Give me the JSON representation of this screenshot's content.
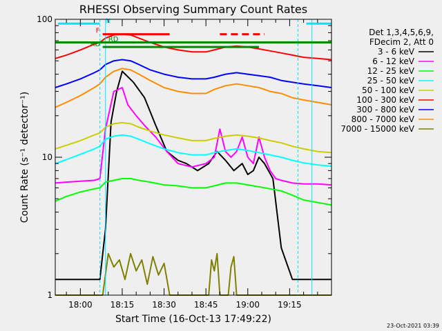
{
  "chart_data": {
    "type": "line",
    "title": "RHESSI Observing Summary Count Rates",
    "xlabel": "Start Time (16-Oct-13 17:49:22)",
    "ylabel": "Count Rate (s⁻¹ detector⁻¹)",
    "y_scale": "log",
    "ylim": [
      1,
      100
    ],
    "xlim_minutes": [
      -9,
      90
    ],
    "x_tick_labels": [
      "18:00",
      "18:15",
      "18:30",
      "18:45",
      "19:00",
      "19:15"
    ],
    "x_tick_minutes": [
      0,
      15,
      30,
      45,
      60,
      75
    ],
    "y_tick_labels": [
      "1",
      "10",
      "100"
    ],
    "y_tick_values": [
      1,
      10,
      100
    ],
    "grid": false,
    "legend_position": "right",
    "legend_header": [
      "Det 1,3,4,5,6,9,",
      "FDecim 2, Att 0"
    ],
    "timestamp": "23-Oct-2021 03:39",
    "flag_labels": {
      "n": "N",
      "f": "F",
      "rd1": "RD",
      "rd2": "RD"
    },
    "colors": {
      "background": "#efefef",
      "axis": "#000000",
      "boundary": "#00e5ff",
      "flag_n": "#00e5ff",
      "flag_f": "#ff0000",
      "flag_rd": "#008800"
    },
    "data_gaps_minutes": [
      [
        7,
        9
      ],
      [
        78,
        83
      ]
    ],
    "series": [
      {
        "name": "3 - 6 keV",
        "color": "#000000",
        "x": [
          -9,
          -5,
          0,
          5,
          7,
          9,
          11,
          13,
          15,
          19,
          23,
          27,
          31,
          35,
          38,
          42,
          46,
          49,
          52,
          55,
          58,
          60,
          62,
          64,
          66,
          69,
          72,
          76,
          80,
          85,
          90
        ],
        "y": [
          1.3,
          1.3,
          1.3,
          1.3,
          1.3,
          3.0,
          18,
          30,
          42,
          35,
          27,
          17,
          11,
          9.5,
          9,
          8,
          9,
          11,
          9.5,
          8,
          9,
          7.5,
          8,
          10,
          9,
          7,
          2.2,
          1.3,
          1.3,
          1.3,
          1.3
        ]
      },
      {
        "name": "6 - 12 keV",
        "color": "#ff00ff",
        "x": [
          -9,
          -5,
          0,
          5,
          7,
          9,
          12,
          15,
          17,
          20,
          23,
          27,
          31,
          35,
          40,
          45,
          48,
          50,
          52,
          54,
          56,
          58,
          60,
          62,
          64,
          66,
          68,
          70,
          72,
          76,
          80,
          85,
          90
        ],
        "y": [
          6.5,
          6.6,
          6.7,
          6.8,
          7,
          16,
          30,
          32,
          24,
          20,
          17,
          14,
          11,
          9,
          8.5,
          9,
          10,
          16,
          11,
          10,
          11,
          14,
          10,
          9,
          14,
          10,
          8,
          7,
          6.8,
          6.5,
          6.4,
          6.4,
          6.3
        ]
      },
      {
        "name": "12 - 25 keV",
        "color": "#00ff00",
        "x": [
          -9,
          -5,
          0,
          5,
          7,
          9,
          12,
          15,
          18,
          21,
          25,
          30,
          35,
          40,
          45,
          48,
          52,
          56,
          60,
          64,
          68,
          72,
          76,
          80,
          85,
          90
        ],
        "y": [
          4.8,
          5.2,
          5.6,
          5.9,
          6,
          6.6,
          6.8,
          7,
          7,
          6.8,
          6.6,
          6.3,
          6.2,
          6,
          6,
          6.2,
          6.5,
          6.5,
          6.3,
          6.1,
          5.9,
          5.7,
          5.3,
          4.9,
          4.7,
          4.5
        ]
      },
      {
        "name": "25 - 50 keV",
        "color": "#00ffff",
        "x": [
          -9,
          -5,
          0,
          5,
          7,
          9,
          12,
          15,
          18,
          21,
          25,
          30,
          35,
          40,
          45,
          48,
          52,
          56,
          60,
          64,
          68,
          72,
          76,
          80,
          85,
          90
        ],
        "y": [
          9,
          9.6,
          10.5,
          11.5,
          12,
          13.5,
          14.2,
          14.5,
          14.2,
          13.5,
          12.5,
          11.5,
          10.8,
          10.4,
          10.4,
          10.8,
          11.2,
          11.5,
          11.2,
          10.8,
          10.4,
          10,
          9.5,
          9.1,
          8.8,
          8.6
        ]
      },
      {
        "name": "50 - 100 keV",
        "color": "#cccc00",
        "x": [
          -9,
          -5,
          0,
          5,
          7,
          9,
          12,
          15,
          18,
          21,
          25,
          30,
          35,
          40,
          45,
          48,
          52,
          56,
          60,
          64,
          68,
          72,
          76,
          80,
          85,
          90
        ],
        "y": [
          11.5,
          12.2,
          13.2,
          14.5,
          15,
          16.5,
          17.5,
          17.8,
          17.5,
          16.5,
          15.5,
          14.5,
          13.8,
          13.2,
          13.2,
          13.7,
          14.2,
          14.5,
          14.2,
          13.8,
          13.2,
          12.7,
          12,
          11.5,
          11,
          10.8
        ]
      },
      {
        "name": "100 - 300 keV",
        "color": "#ff0000",
        "x": [
          -9,
          -5,
          0,
          5,
          7,
          9,
          12,
          15,
          18,
          21,
          25,
          30,
          35,
          40,
          45,
          48,
          52,
          56,
          60,
          64,
          68,
          72,
          76,
          80,
          85,
          90
        ],
        "y": [
          52,
          55,
          60,
          66,
          68,
          73,
          77,
          78,
          77,
          73,
          68,
          63,
          60,
          58,
          58,
          60,
          63,
          64,
          63,
          61,
          59,
          57,
          55,
          53,
          52,
          51
        ]
      },
      {
        "name": "300 - 800 keV",
        "color": "#0000ff",
        "x": [
          -9,
          -5,
          0,
          5,
          7,
          9,
          12,
          15,
          18,
          21,
          25,
          30,
          35,
          40,
          45,
          48,
          52,
          56,
          60,
          64,
          68,
          72,
          76,
          80,
          85,
          90
        ],
        "y": [
          32,
          34,
          37,
          41,
          43,
          47,
          50,
          51,
          50,
          47,
          43,
          40,
          38,
          37,
          37,
          38,
          40,
          41,
          40,
          39,
          38,
          36,
          35,
          34,
          33,
          32
        ]
      },
      {
        "name": "800 - 7000 keV",
        "color": "#ff8c00",
        "x": [
          -9,
          -5,
          0,
          5,
          7,
          9,
          12,
          15,
          18,
          21,
          25,
          30,
          35,
          40,
          45,
          48,
          52,
          56,
          60,
          64,
          68,
          72,
          76,
          80,
          85,
          90
        ],
        "y": [
          23,
          25,
          28,
          32,
          34,
          38,
          42,
          44,
          43,
          40,
          36,
          32,
          30,
          29,
          29,
          31,
          33,
          34,
          33,
          32,
          30,
          29,
          27,
          26,
          25,
          24
        ]
      },
      {
        "name": "7000 - 15000 keV",
        "color": "#808000",
        "x": [
          -9,
          5,
          8,
          10,
          12,
          14,
          16,
          18,
          20,
          22,
          24,
          26,
          28,
          30,
          32,
          46,
          47,
          48,
          49,
          50,
          53,
          54,
          55,
          56,
          60,
          90
        ],
        "y": [
          1,
          1,
          1,
          2.0,
          1.6,
          1.8,
          1.3,
          2.0,
          1.5,
          1.8,
          1.2,
          1.9,
          1.4,
          1.7,
          1,
          1,
          1.8,
          1.5,
          2.0,
          1,
          1,
          1.6,
          1.9,
          1,
          1,
          1
        ]
      }
    ]
  }
}
